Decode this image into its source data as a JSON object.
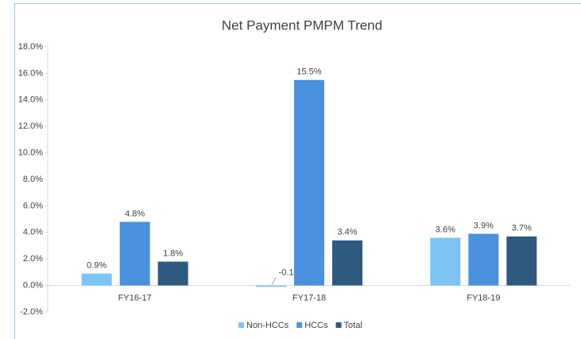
{
  "chart_data": {
    "type": "bar",
    "title": "Net Payment PMPM Trend",
    "categories": [
      "FY16-17",
      "FY17-18",
      "FY18-19"
    ],
    "series": [
      {
        "name": "Non-HCCs",
        "color": "#7cc4f4",
        "values": [
          0.9,
          -0.1,
          3.6
        ],
        "value_labels": [
          "0.9%",
          "-0.1%",
          "3.6%"
        ]
      },
      {
        "name": "HCCs",
        "color": "#4a91e0",
        "values": [
          4.8,
          15.5,
          3.9
        ],
        "value_labels": [
          "4.8%",
          "15.5%",
          "3.9%"
        ]
      },
      {
        "name": "Total",
        "color": "#2e5a80",
        "values": [
          1.8,
          3.4,
          3.7
        ],
        "value_labels": [
          "1.8%",
          "3.4%",
          "3.7%"
        ]
      }
    ],
    "ylim": [
      -2,
      18
    ],
    "yticks": [
      {
        "value": -2,
        "label": "-2.0%"
      },
      {
        "value": 0,
        "label": "0.0%"
      },
      {
        "value": 2,
        "label": "2.0%"
      },
      {
        "value": 4,
        "label": "4.0%"
      },
      {
        "value": 6,
        "label": "6.0%"
      },
      {
        "value": 8,
        "label": "8.0%"
      },
      {
        "value": 10,
        "label": "10.0%"
      },
      {
        "value": 12,
        "label": "12.0%"
      },
      {
        "value": 14,
        "label": "14.0%"
      },
      {
        "value": 16,
        "label": "16.0%"
      },
      {
        "value": 18,
        "label": "18.0%"
      }
    ],
    "grid": false,
    "legend": "bottom"
  }
}
